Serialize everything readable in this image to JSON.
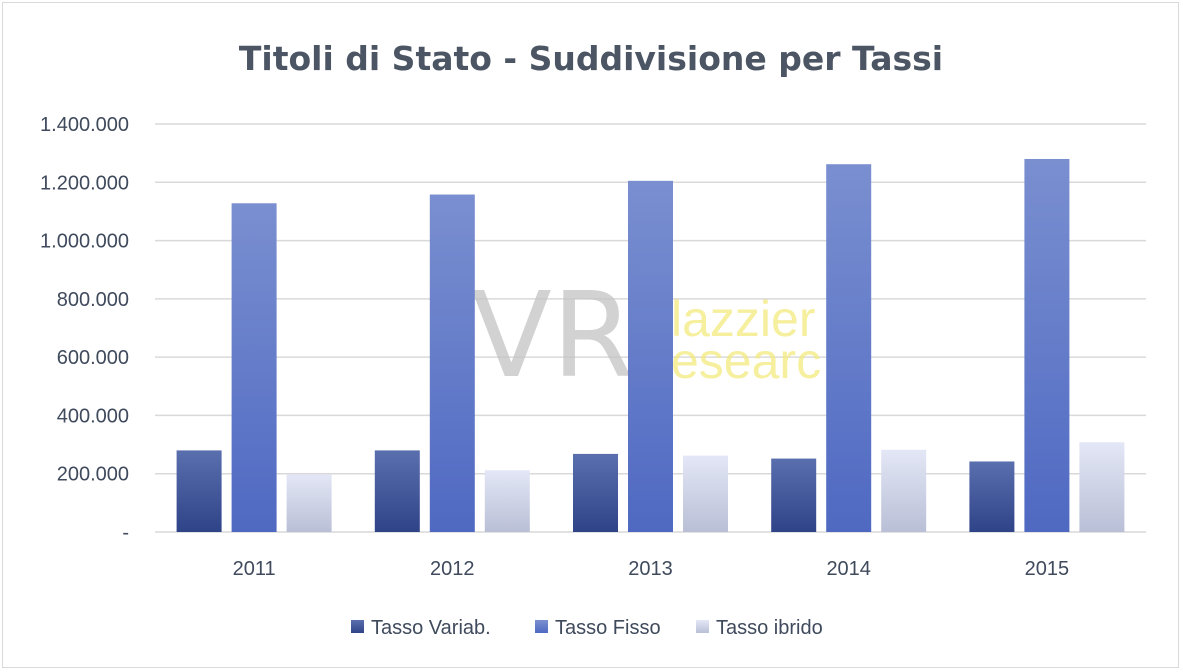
{
  "chart_data": {
    "type": "bar",
    "title": "Titoli di Stato - Suddivisione per Tassi",
    "categories": [
      "2011",
      "2012",
      "2013",
      "2014",
      "2015"
    ],
    "series": [
      {
        "name": "Tasso Variab.",
        "color": "#3b4f96",
        "values": [
          280000,
          280000,
          268000,
          252000,
          242000
        ]
      },
      {
        "name": "Tasso Fisso",
        "color": "#5c77c9",
        "values": [
          1128000,
          1158000,
          1205000,
          1262000,
          1280000
        ]
      },
      {
        "name": "Tasso ibrido",
        "color": "#d4d9ee",
        "values": [
          198000,
          212000,
          262000,
          282000,
          308000
        ]
      }
    ],
    "ylim": [
      0,
      1400000
    ],
    "ytick_values": [
      0,
      200000,
      400000,
      600000,
      800000,
      1000000,
      1200000,
      1400000
    ],
    "ytick_labels": [
      "-",
      "200.000",
      "400.000",
      "600.000",
      "800.000",
      "1.000.000",
      "1.200.000",
      "1.400.000"
    ],
    "grid": true,
    "legend_position": "bottom"
  },
  "watermark": {
    "logo_letters": "VR",
    "word_line1": "lazzier",
    "word_line2": "esearc"
  }
}
